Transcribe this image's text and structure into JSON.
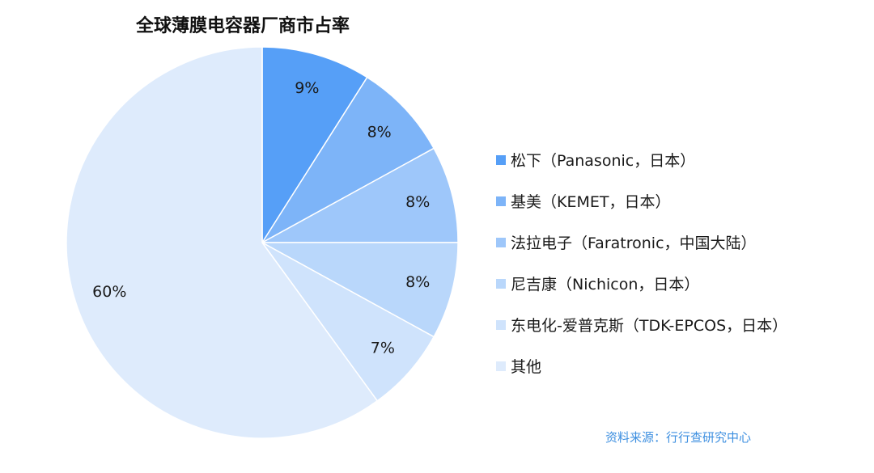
{
  "chart_data": {
    "type": "pie",
    "title": "全球薄膜电容器厂商市占率",
    "slices": [
      {
        "name": "松下（Panasonic，日本）",
        "value": 9,
        "label": "9%",
        "color": "#569ff7"
      },
      {
        "name": "基美（KEMET，日本）",
        "value": 8,
        "label": "8%",
        "color": "#7db4f8"
      },
      {
        "name": "法拉电子（Faratronic，中国大陆）",
        "value": 8,
        "label": "8%",
        "color": "#9ec7fa"
      },
      {
        "name": "尼吉康（Nichicon，日本）",
        "value": 8,
        "label": "8%",
        "color": "#b9d7fb"
      },
      {
        "name": "东电化-爱普克斯（TDK-EPCOS，日本）",
        "value": 7,
        "label": "7%",
        "color": "#cfe3fc"
      },
      {
        "name": "其他",
        "value": 60,
        "label": "60%",
        "color": "#deebfc"
      }
    ],
    "legend_position": "right"
  },
  "source_note": "资料来源：行行查研究中心"
}
